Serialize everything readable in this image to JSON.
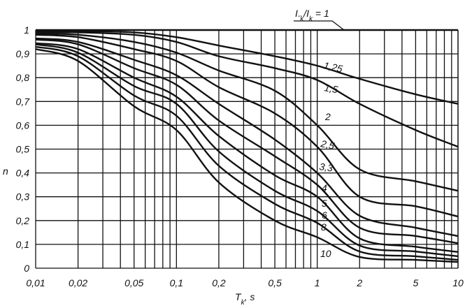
{
  "chart_data": {
    "type": "line",
    "title": "",
    "xlabel": "T_k, s",
    "ylabel": "n",
    "x_scale": "log",
    "xlim": [
      0.01,
      10
    ],
    "ylim": [
      0,
      1
    ],
    "grid": true,
    "legend_title": "I\"k/Ik = 1",
    "x_ticks": [
      0.01,
      0.02,
      0.05,
      0.1,
      0.2,
      0.5,
      1,
      2,
      5,
      10
    ],
    "x_tick_labels": [
      "0,01",
      "0,02",
      "0,05",
      "0,1",
      "0,2",
      "0,5",
      "1",
      "2",
      "5",
      "10"
    ],
    "y_ticks": [
      0,
      0.1,
      0.2,
      0.3,
      0.4,
      0.5,
      0.6,
      0.7,
      0.8,
      0.9,
      1
    ],
    "y_tick_labels": [
      "0",
      "0,1",
      "0,2",
      "0,3",
      "0,4",
      "0,5",
      "0,6",
      "0,7",
      "0,8",
      "0,9",
      "1"
    ],
    "x": [
      0.01,
      0.02,
      0.05,
      0.1,
      0.2,
      0.5,
      1,
      2,
      5,
      10
    ],
    "series": [
      {
        "name": "1",
        "values": [
          1,
          1,
          1,
          1,
          1,
          1,
          1,
          1,
          1,
          1
        ]
      },
      {
        "name": "1,25",
        "values": [
          0.995,
          0.995,
          0.99,
          0.97,
          0.935,
          0.89,
          0.85,
          0.795,
          0.73,
          0.69
        ]
      },
      {
        "name": "1,5",
        "values": [
          0.99,
          0.99,
          0.98,
          0.95,
          0.89,
          0.84,
          0.79,
          0.69,
          0.58,
          0.51
        ]
      },
      {
        "name": "2",
        "values": [
          0.985,
          0.98,
          0.95,
          0.905,
          0.83,
          0.745,
          0.6,
          0.415,
          0.365,
          0.325
        ]
      },
      {
        "name": "2,5",
        "values": [
          0.98,
          0.97,
          0.92,
          0.87,
          0.76,
          0.65,
          0.51,
          0.3,
          0.26,
          0.217
        ]
      },
      {
        "name": "3,3",
        "values": [
          0.965,
          0.95,
          0.875,
          0.81,
          0.69,
          0.54,
          0.4,
          0.22,
          0.17,
          0.135
        ]
      },
      {
        "name": "4",
        "values": [
          0.96,
          0.94,
          0.84,
          0.77,
          0.62,
          0.47,
          0.35,
          0.17,
          0.135,
          0.105
        ]
      },
      {
        "name": "5",
        "values": [
          0.945,
          0.92,
          0.8,
          0.72,
          0.555,
          0.39,
          0.3,
          0.125,
          0.09,
          0.068
        ]
      },
      {
        "name": "6",
        "values": [
          0.94,
          0.905,
          0.765,
          0.69,
          0.49,
          0.325,
          0.24,
          0.095,
          0.07,
          0.05
        ]
      },
      {
        "name": "8",
        "values": [
          0.93,
          0.89,
          0.725,
          0.64,
          0.43,
          0.27,
          0.19,
          0.07,
          0.05,
          0.035
        ]
      },
      {
        "name": "10",
        "values": [
          0.92,
          0.87,
          0.68,
          0.58,
          0.36,
          0.2,
          0.13,
          0.047,
          0.035,
          0.026
        ]
      }
    ],
    "line_color": "#111111"
  }
}
